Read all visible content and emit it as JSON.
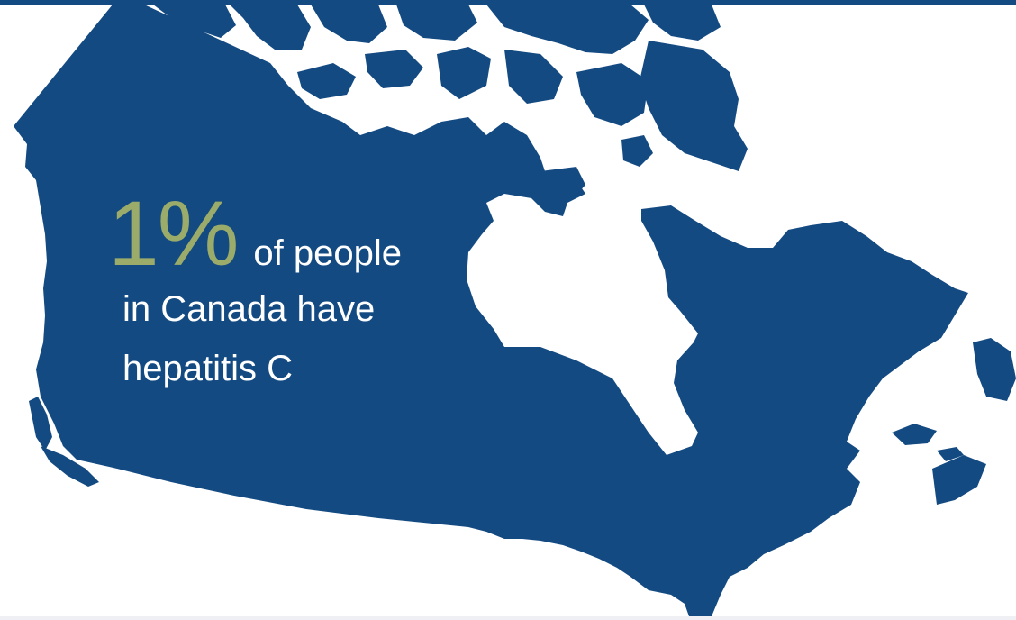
{
  "colors": {
    "map_fill": "#144a82",
    "water": "#ffffff",
    "accent": "#9bab6a",
    "text": "#ffffff",
    "top_bar": "#144a82"
  },
  "stat": {
    "value": "1%",
    "line1_suffix": "of people",
    "line2": "in Canada have",
    "line3": "hepatitis C"
  }
}
